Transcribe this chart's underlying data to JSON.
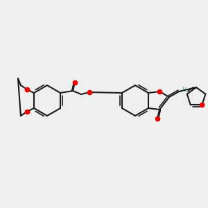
{
  "bg_color": "#efefef",
  "bond_color": "#1a1a1a",
  "oxygen_color": "#ee0000",
  "hydrogen_color": "#4a9090",
  "fig_width": 3.0,
  "fig_height": 3.0,
  "dpi": 100,
  "lw": 1.5,
  "lw2": 1.2
}
